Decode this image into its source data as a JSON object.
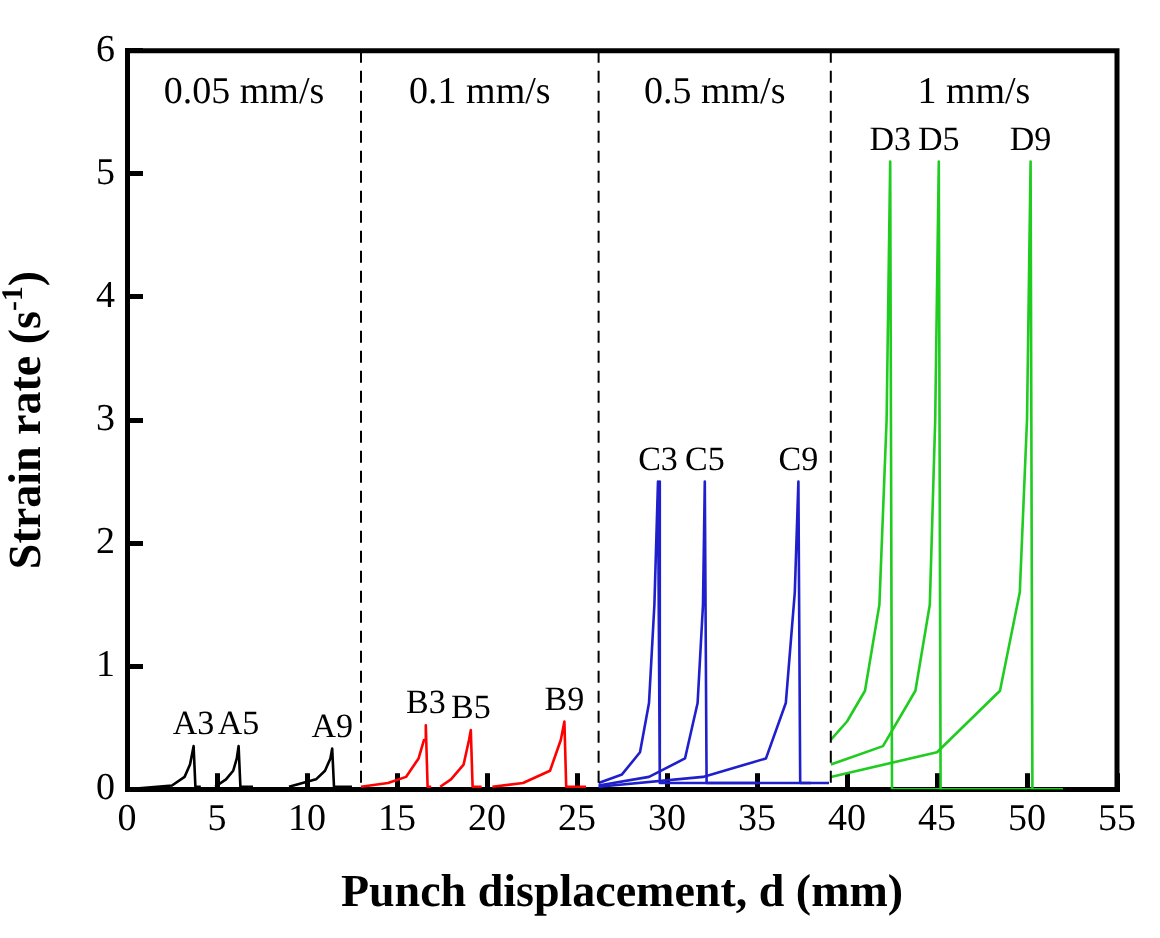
{
  "chart_data": {
    "type": "line",
    "xlabel": "Punch displacement, d (mm)",
    "ylabel": "Strain rate (s$^{-1}$)",
    "xlim": [
      0,
      55
    ],
    "ylim": [
      0,
      6
    ],
    "xticks": [
      0,
      5,
      10,
      15,
      20,
      25,
      30,
      35,
      40,
      45,
      50,
      55
    ],
    "yticks": [
      0,
      1,
      2,
      3,
      4,
      5,
      6
    ],
    "grid": false,
    "legend": false,
    "marker": "none",
    "line_style": "solid",
    "ref_lines": [
      {
        "axis": "x",
        "value": 13,
        "color": "#000000",
        "line_style": "dashed"
      },
      {
        "axis": "x",
        "value": 26.2,
        "color": "#000000",
        "line_style": "dashed"
      },
      {
        "axis": "x",
        "value": 39.1,
        "color": "#000000",
        "line_style": "dashed"
      }
    ],
    "annotations": [
      "0.05 mm/s",
      "0.1 mm/s",
      "0.5 mm/s",
      "1 mm/s"
    ],
    "series": [
      {
        "name": "A3",
        "color": "#000000",
        "x": [
          0,
          2.5,
          3.2,
          3.5,
          3.7,
          3.8,
          4.1
        ],
        "values": [
          0,
          0.03,
          0.1,
          0.2,
          0.35,
          0.02,
          0.02
        ]
      },
      {
        "name": "A5",
        "color": "#000000",
        "x": [
          4.9,
          5.5,
          5.9,
          6.1,
          6.2,
          6.3,
          7
        ],
        "values": [
          0.02,
          0.08,
          0.15,
          0.25,
          0.35,
          0.02,
          0.02
        ]
      },
      {
        "name": "A9",
        "color": "#000000",
        "x": [
          9,
          10.5,
          11,
          11.3,
          11.4,
          11.5,
          12.5
        ],
        "values": [
          0.02,
          0.08,
          0.15,
          0.25,
          0.33,
          0.02,
          0.02
        ]
      },
      {
        "name": "B3",
        "color": "#ff0000",
        "x": [
          13,
          14.5,
          15.5,
          16.2,
          16.5,
          16.6,
          16.7,
          16.9
        ],
        "values": [
          0.02,
          0.05,
          0.1,
          0.25,
          0.4,
          0.52,
          0.02,
          0.02
        ]
      },
      {
        "name": "B5",
        "color": "#ff0000",
        "x": [
          17.4,
          18,
          18.7,
          19,
          19.1,
          19.2,
          19.7
        ],
        "values": [
          0.02,
          0.08,
          0.2,
          0.4,
          0.48,
          0.02,
          0.02
        ]
      },
      {
        "name": "B9",
        "color": "#ff0000",
        "x": [
          20.3,
          22,
          23.5,
          24.1,
          24.3,
          24.4,
          25.5
        ],
        "values": [
          0.02,
          0.05,
          0.15,
          0.4,
          0.55,
          0.02,
          0.02
        ]
      },
      {
        "name": "C3",
        "color": "#1f1fcc",
        "x": [
          26.2,
          27.5,
          28.5,
          29,
          29.3,
          29.5,
          29.6,
          35
        ],
        "values": [
          0.05,
          0.12,
          0.3,
          0.7,
          1.5,
          2.5,
          0.05,
          0.05
        ]
      },
      {
        "name": "C5",
        "color": "#1f1fcc",
        "x": [
          26.2,
          29,
          31,
          31.7,
          32,
          32.1,
          32.2,
          38
        ],
        "values": [
          0.03,
          0.1,
          0.25,
          0.7,
          1.5,
          2.5,
          0.05,
          0.05
        ]
      },
      {
        "name": "C9",
        "color": "#1f1fcc",
        "x": [
          26.2,
          32,
          35.5,
          36.6,
          37.1,
          37.3,
          37.4,
          39
        ],
        "values": [
          0.02,
          0.1,
          0.25,
          0.7,
          1.6,
          2.5,
          0.05,
          0.05
        ]
      },
      {
        "name": "D3",
        "color": "#1fcc1f",
        "x": [
          39.1,
          40,
          41,
          41.8,
          42.2,
          42.4,
          42.5,
          50
        ],
        "values": [
          0.4,
          0.55,
          0.8,
          1.5,
          3,
          5.1,
          0,
          0
        ]
      },
      {
        "name": "D5",
        "color": "#1fcc1f",
        "x": [
          39.1,
          42,
          43.8,
          44.6,
          44.9,
          45.1,
          45.2,
          52
        ],
        "values": [
          0.2,
          0.35,
          0.8,
          1.5,
          3,
          5.1,
          0,
          0
        ]
      },
      {
        "name": "D9",
        "color": "#1fcc1f",
        "x": [
          39.1,
          45,
          48.5,
          49.6,
          50,
          50.2,
          50.3,
          52
        ],
        "values": [
          0.1,
          0.3,
          0.8,
          1.6,
          3,
          5.1,
          0,
          0
        ]
      }
    ]
  }
}
